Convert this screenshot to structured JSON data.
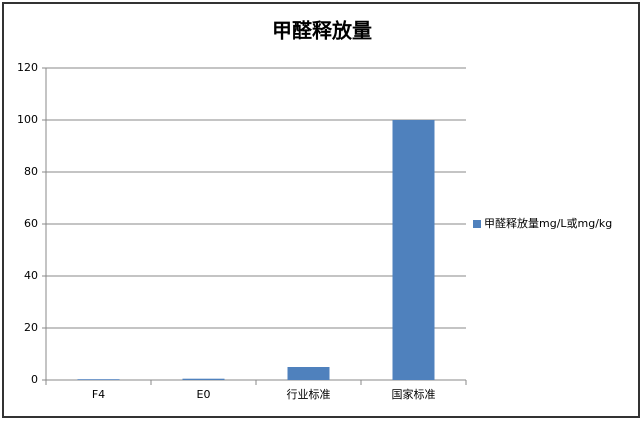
{
  "chart_data": {
    "type": "bar",
    "title": "甲醛释放量",
    "categories": [
      "F4",
      "E0",
      "行业标准",
      "国家标准"
    ],
    "series": [
      {
        "name": "甲醛释放量mg/L或mg/kg",
        "color": "#4f81bd",
        "values": [
          0.3,
          0.5,
          5,
          100
        ]
      }
    ],
    "ylim": [
      0,
      120
    ],
    "yticks": [
      0,
      20,
      40,
      60,
      80,
      100,
      120
    ],
    "grid": true,
    "legend": "right"
  }
}
